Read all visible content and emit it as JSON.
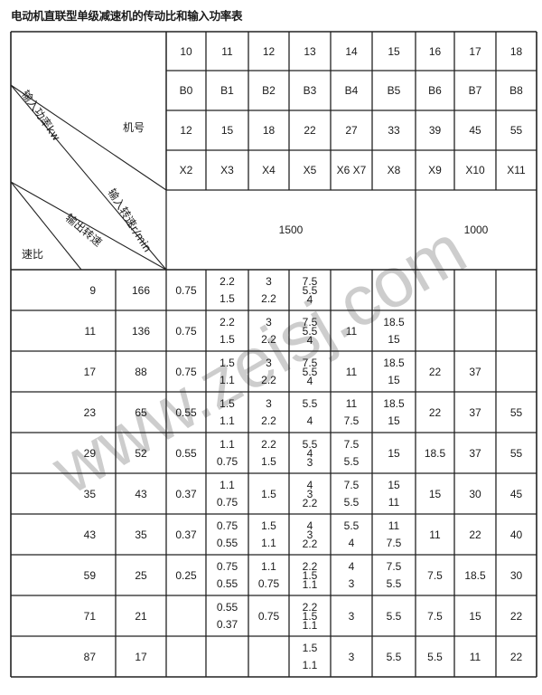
{
  "title": "电动机直联型单级减速机的传动比和输入功率表",
  "watermark": "www.zeisj.com",
  "header": {
    "frame_label": "机号",
    "input_power_label": "输入功率kw",
    "input_speed_label": "输入转速r/min",
    "output_speed_label": "输出转速",
    "ratio_label": "速比",
    "rows": [
      [
        "10",
        "11",
        "12",
        "13",
        "14",
        "15",
        "16",
        "17",
        "18"
      ],
      [
        "B0",
        "B1",
        "B2",
        "B3",
        "B4",
        "B5",
        "B6",
        "B7",
        "B8"
      ],
      [
        "12",
        "15",
        "18",
        "22",
        "27",
        "33",
        "39",
        "45",
        "55"
      ],
      [
        "X2",
        "X3",
        "X4",
        "X5",
        "X6  X7",
        "X8",
        "X9",
        "X10",
        "X11"
      ]
    ],
    "speeds": [
      "1500",
      "1000"
    ]
  },
  "body": [
    {
      "ratio": "9",
      "out": "166",
      "cells": [
        [
          "0.75"
        ],
        [
          "2.2",
          "1.5"
        ],
        [
          "3",
          "2.2"
        ],
        [
          "7.5",
          "5.5",
          "4"
        ],
        [],
        [],
        [],
        [],
        []
      ]
    },
    {
      "ratio": "11",
      "out": "136",
      "cells": [
        [
          "0.75"
        ],
        [
          "2.2",
          "1.5"
        ],
        [
          "3",
          "2.2"
        ],
        [
          "7.5",
          "5.5",
          "4"
        ],
        [
          "11"
        ],
        [
          "18.5",
          "15"
        ],
        [],
        [],
        []
      ]
    },
    {
      "ratio": "17",
      "out": "88",
      "cells": [
        [
          "0.75"
        ],
        [
          "1.5",
          "1.1"
        ],
        [
          "3",
          "2.2"
        ],
        [
          "7.5",
          "5.5",
          "4"
        ],
        [
          "11"
        ],
        [
          "18.5",
          "15"
        ],
        [
          "22"
        ],
        [
          "37"
        ],
        []
      ]
    },
    {
      "ratio": "23",
      "out": "65",
      "cells": [
        [
          "0.55"
        ],
        [
          "1.5",
          "1.1"
        ],
        [
          "3",
          "2.2"
        ],
        [
          "5.5",
          "4"
        ],
        [
          "11",
          "7.5"
        ],
        [
          "18.5",
          "15"
        ],
        [
          "22"
        ],
        [
          "37"
        ],
        [
          "55"
        ]
      ]
    },
    {
      "ratio": "29",
      "out": "52",
      "cells": [
        [
          "0.55"
        ],
        [
          "1.1",
          "0.75"
        ],
        [
          "2.2",
          "1.5"
        ],
        [
          "5.5",
          "4",
          "3"
        ],
        [
          "7.5",
          "5.5"
        ],
        [
          "15"
        ],
        [
          "18.5"
        ],
        [
          "37"
        ],
        [
          "55"
        ]
      ]
    },
    {
      "ratio": "35",
      "out": "43",
      "cells": [
        [
          "0.37"
        ],
        [
          "1.1",
          "0.75"
        ],
        [
          "1.5"
        ],
        [
          "4",
          "3",
          "2.2"
        ],
        [
          "7.5",
          "5.5"
        ],
        [
          "15",
          "11"
        ],
        [
          "15"
        ],
        [
          "30"
        ],
        [
          "45"
        ]
      ]
    },
    {
      "ratio": "43",
      "out": "35",
      "cells": [
        [
          "0.37"
        ],
        [
          "0.75",
          "0.55"
        ],
        [
          "1.5",
          "1.1"
        ],
        [
          "4",
          "3",
          "2.2"
        ],
        [
          "5.5",
          "4"
        ],
        [
          "11",
          "7.5"
        ],
        [
          "11"
        ],
        [
          "22"
        ],
        [
          "40"
        ]
      ]
    },
    {
      "ratio": "59",
      "out": "25",
      "cells": [
        [
          "0.25"
        ],
        [
          "0.75",
          "0.55"
        ],
        [
          "1.1",
          "0.75"
        ],
        [
          "2.2",
          "1.5",
          "1.1"
        ],
        [
          "4",
          "3"
        ],
        [
          "7.5",
          "5.5"
        ],
        [
          "7.5"
        ],
        [
          "18.5"
        ],
        [
          "30"
        ]
      ]
    },
    {
      "ratio": "71",
      "out": "21",
      "cells": [
        [],
        [
          "0.55",
          "0.37"
        ],
        [
          "0.75"
        ],
        [
          "2.2",
          "1.5",
          "1.1"
        ],
        [
          "3"
        ],
        [
          "5.5"
        ],
        [
          "7.5"
        ],
        [
          "15"
        ],
        [
          "22"
        ]
      ]
    },
    {
      "ratio": "87",
      "out": "17",
      "cells": [
        [],
        [],
        [],
        [
          "1.5",
          "1.1"
        ],
        [
          "3"
        ],
        [
          "5.5"
        ],
        [
          "5.5"
        ],
        [
          "11"
        ],
        [
          "22"
        ]
      ]
    }
  ]
}
